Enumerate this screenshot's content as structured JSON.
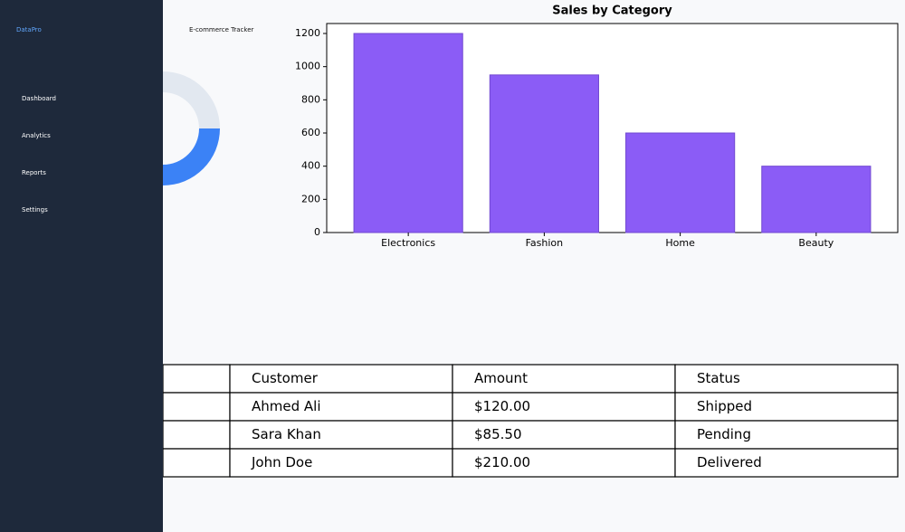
{
  "sidebar": {
    "brand": "DataPro",
    "nav": [
      "Dashboard",
      "Analytics",
      "Reports",
      "Settings"
    ]
  },
  "header": {
    "title": "E-commerce Tracker"
  },
  "chart_data": [
    {
      "type": "donut",
      "values": [
        50,
        50
      ],
      "colors": [
        "#3b82f6",
        "#e2e8f0"
      ]
    },
    {
      "type": "bar",
      "title": "Sales by Category",
      "categories": [
        "Electronics",
        "Fashion",
        "Home",
        "Beauty"
      ],
      "values": [
        1200,
        950,
        600,
        400
      ],
      "color": "#8b5cf6",
      "ylim": [
        0,
        1260
      ],
      "yticks": [
        0,
        200,
        400,
        600,
        800,
        1000,
        1200
      ]
    }
  ],
  "table": {
    "columns": [
      "Customer",
      "Amount",
      "Status"
    ],
    "rows": [
      [
        "Ahmed Ali",
        "$120.00",
        "Shipped"
      ],
      [
        "Sara Khan",
        "$85.50",
        "Pending"
      ],
      [
        "John Doe",
        "$210.00",
        "Delivered"
      ]
    ]
  }
}
